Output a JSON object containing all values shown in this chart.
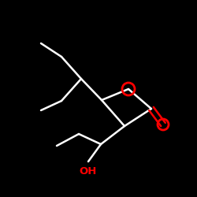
{
  "background_color": "#000000",
  "bond_color": "#ffffff",
  "oxygen_color": "#ff0000",
  "oh_color": "#ff0000",
  "lw": 1.8,
  "figsize": [
    2.5,
    2.5
  ],
  "dpi": 100,
  "xlim": [
    0,
    250
  ],
  "ylim": [
    0,
    250
  ]
}
